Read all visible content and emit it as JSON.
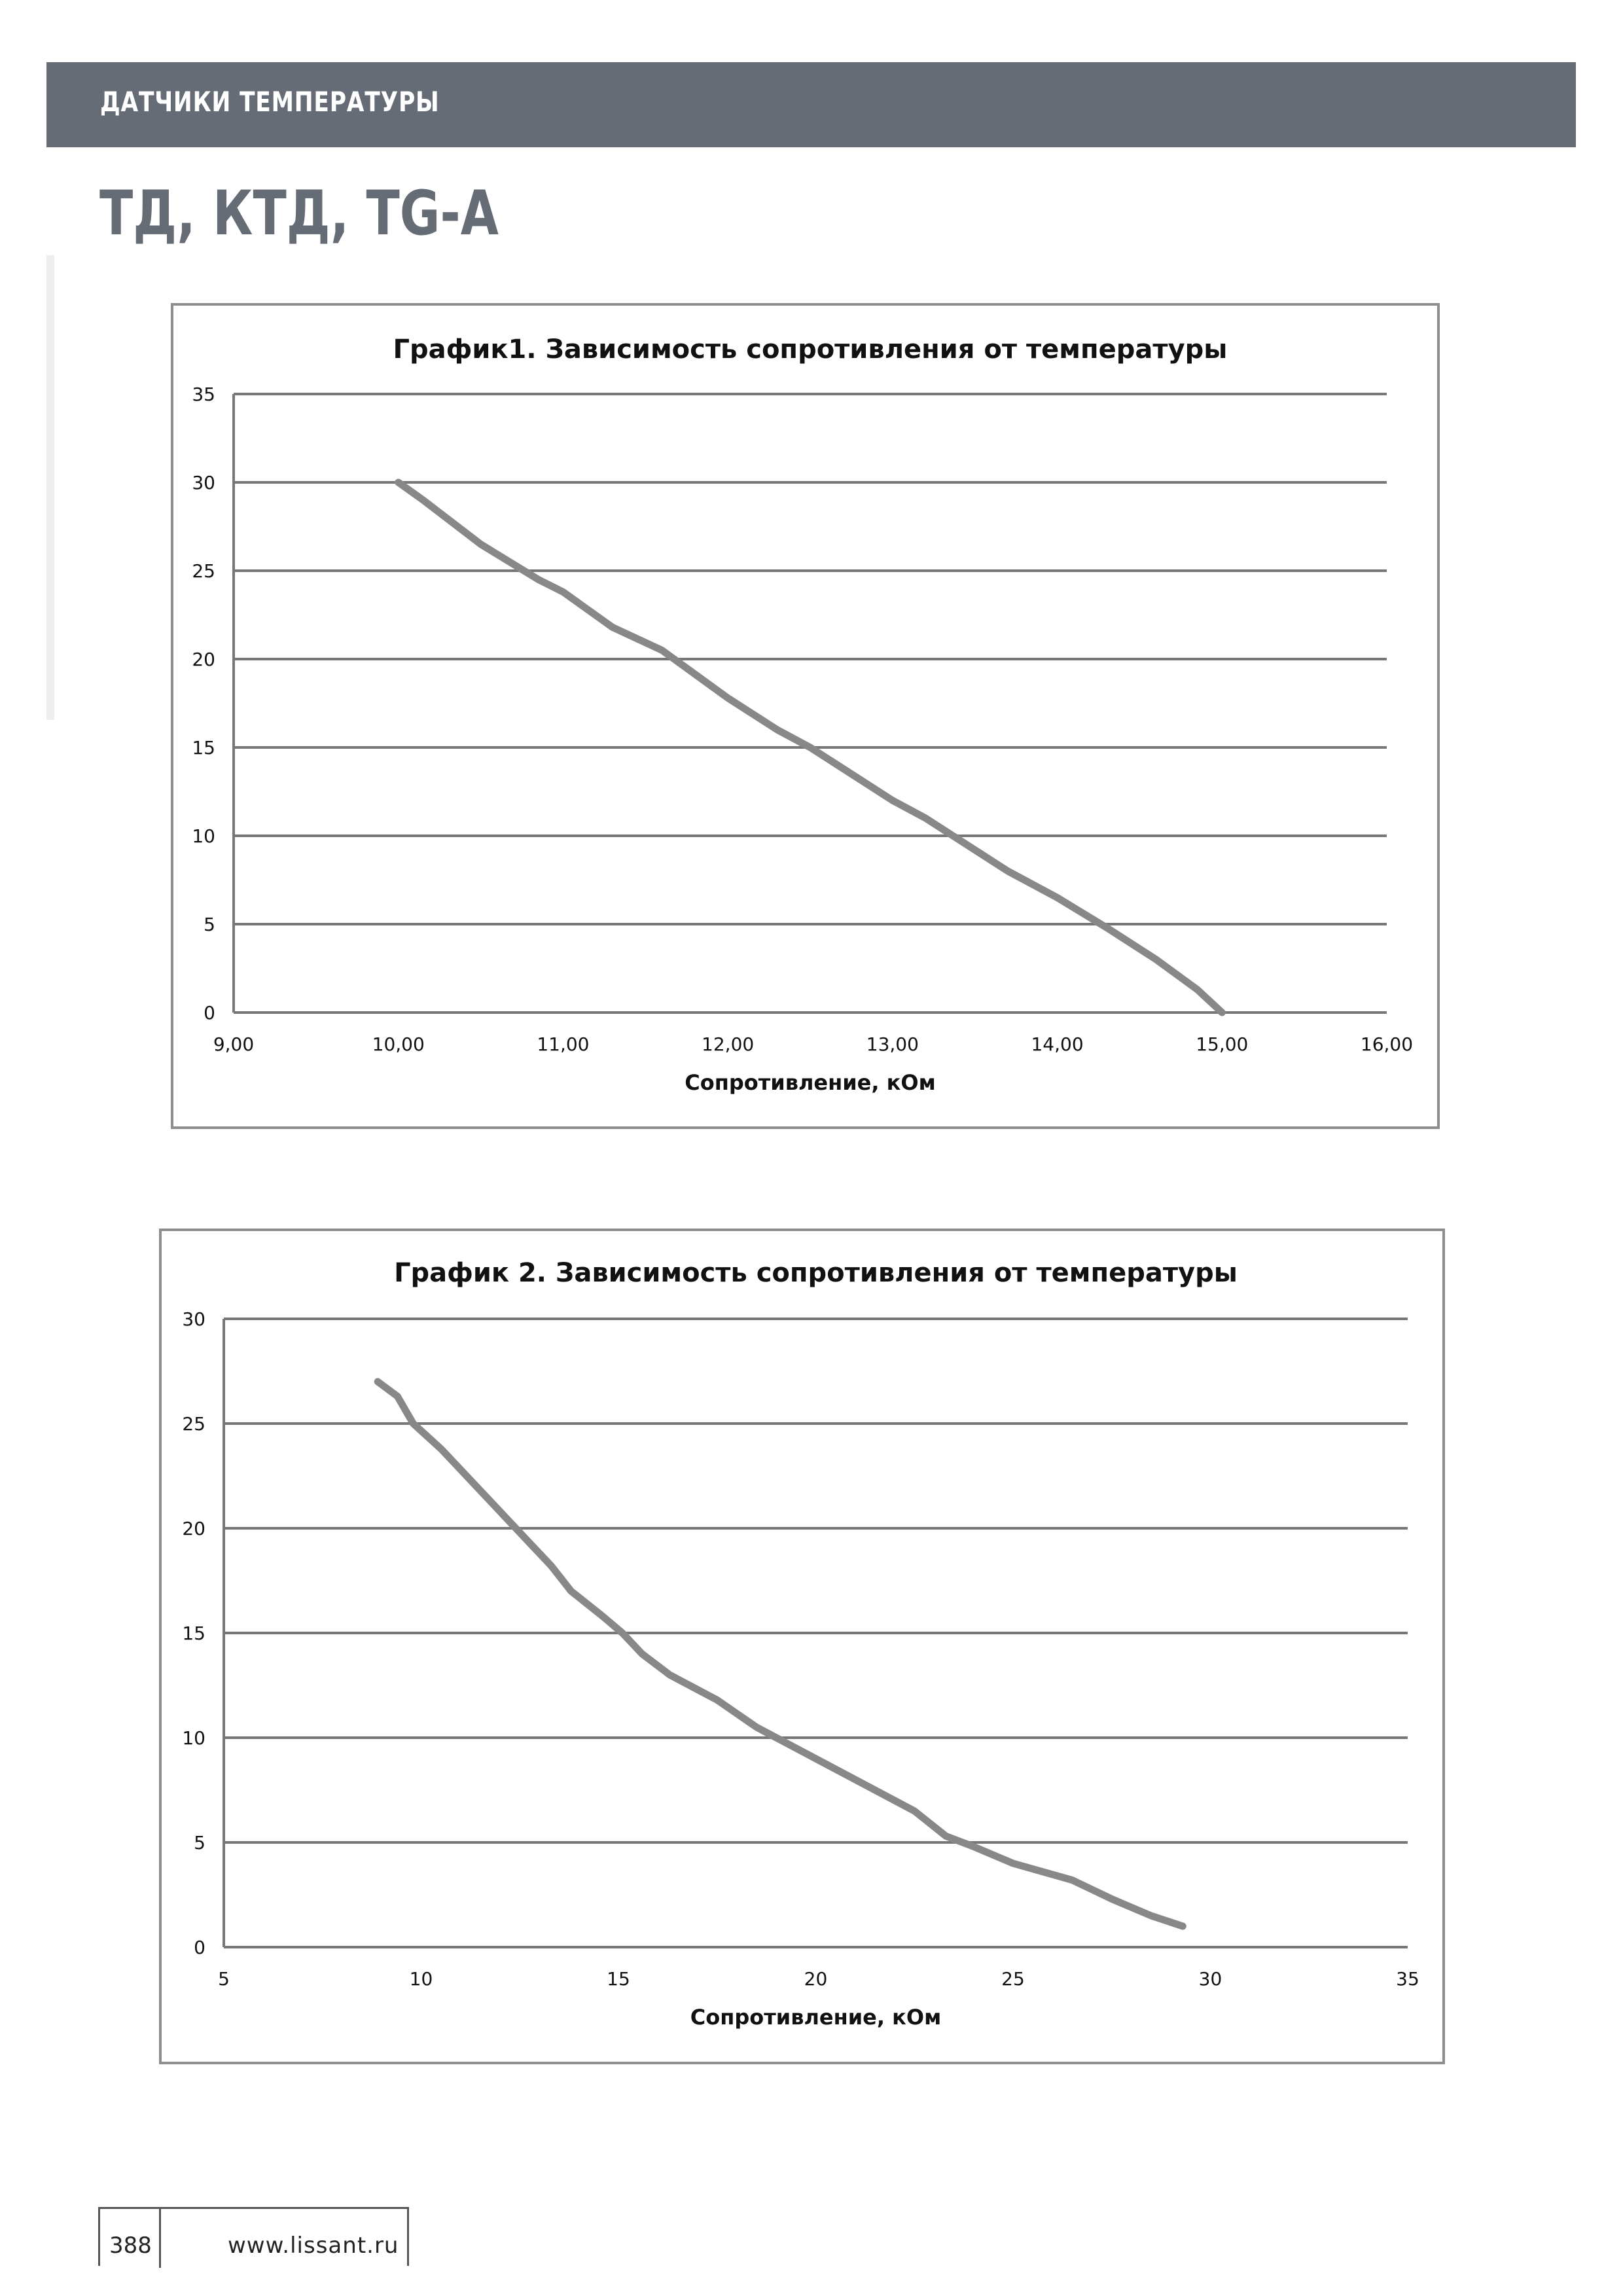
{
  "header": {
    "section": "ДАТЧИКИ ТЕМПЕРАТУРЫ",
    "background": "#656c75"
  },
  "title": "ТД, КТД, TG-A",
  "footer": {
    "page_number": "388",
    "website": "www.lissant.ru"
  },
  "chart_data": [
    {
      "type": "line",
      "title": "График1. Зависимость сопротивления от температуры",
      "xlabel": "Сопротивление, кОм",
      "ylabel": "",
      "xlim": [
        9,
        16
      ],
      "ylim": [
        0,
        35
      ],
      "xticks": [
        "9,00",
        "10,00",
        "11,00",
        "12,00",
        "13,00",
        "14,00",
        "15,00",
        "16,00"
      ],
      "yticks": [
        "0",
        "5",
        "10",
        "15",
        "20",
        "25",
        "30",
        "35"
      ],
      "grid": "horizontal",
      "line_color": "#888888",
      "points": [
        [
          10.0,
          30
        ],
        [
          10.15,
          29.0
        ],
        [
          10.5,
          26.5
        ],
        [
          10.85,
          24.5
        ],
        [
          11.0,
          23.8
        ],
        [
          11.3,
          21.8
        ],
        [
          11.6,
          20.5
        ],
        [
          12.0,
          17.8
        ],
        [
          12.3,
          16.0
        ],
        [
          12.5,
          15.0
        ],
        [
          13.0,
          12.0
        ],
        [
          13.2,
          11.0
        ],
        [
          13.4,
          9.8
        ],
        [
          13.7,
          8.0
        ],
        [
          14.0,
          6.5
        ],
        [
          14.3,
          4.8
        ],
        [
          14.6,
          3.0
        ],
        [
          14.85,
          1.3
        ],
        [
          15.0,
          0
        ]
      ]
    },
    {
      "type": "line",
      "title": "График 2. Зависимость сопротивления от температуры",
      "xlabel": "Сопротивление, кОм",
      "ylabel": "",
      "xlim": [
        5,
        35
      ],
      "ylim": [
        0,
        30
      ],
      "xticks": [
        "5",
        "10",
        "15",
        "20",
        "25",
        "30",
        "35"
      ],
      "yticks": [
        "0",
        "5",
        "10",
        "15",
        "20",
        "25",
        "30"
      ],
      "grid": "horizontal",
      "line_color": "#888888",
      "points": [
        [
          8.9,
          27
        ],
        [
          9.4,
          26.3
        ],
        [
          9.8,
          25.0
        ],
        [
          10.5,
          23.8
        ],
        [
          11.0,
          22.8
        ],
        [
          12.0,
          20.8
        ],
        [
          12.8,
          19.2
        ],
        [
          13.3,
          18.2
        ],
        [
          13.8,
          17.0
        ],
        [
          14.6,
          15.8
        ],
        [
          15.1,
          15.0
        ],
        [
          15.6,
          14.0
        ],
        [
          16.3,
          13.0
        ],
        [
          17.5,
          11.8
        ],
        [
          18.5,
          10.5
        ],
        [
          19.0,
          10.0
        ],
        [
          20.5,
          8.5
        ],
        [
          21.5,
          7.5
        ],
        [
          22.5,
          6.5
        ],
        [
          23.3,
          5.3
        ],
        [
          24.0,
          4.8
        ],
        [
          25.0,
          4.0
        ],
        [
          26.5,
          3.2
        ],
        [
          27.5,
          2.3
        ],
        [
          28.5,
          1.5
        ],
        [
          29.3,
          1.0
        ]
      ]
    }
  ]
}
